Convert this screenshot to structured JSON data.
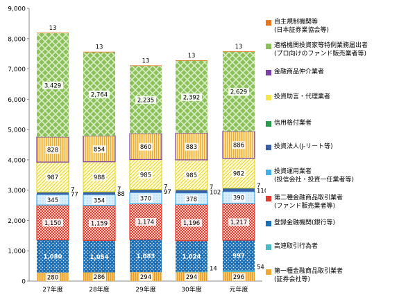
{
  "chart_data": {
    "type": "bar",
    "stacked": true,
    "categories": [
      "27年度",
      "28年度",
      "29年度",
      "30年度",
      "元年度"
    ],
    "ylim": [
      0,
      9000
    ],
    "yticks": [
      "0",
      "1,000",
      "2,000",
      "3,000",
      "4,000",
      "5,000",
      "6,000",
      "7,000",
      "8,000",
      "9,000"
    ],
    "yticks_values": [
      0,
      1000,
      2000,
      3000,
      4000,
      5000,
      6000,
      7000,
      8000,
      9000
    ],
    "legend_position": "right",
    "series": [
      {
        "name": "第一種金融商品取引業者\n(証券会社等)",
        "values": [
          280,
          286,
          294,
          294,
          296
        ],
        "labels": [
          "280",
          "286",
          "294",
          "294",
          "296"
        ],
        "color": "#f0a830",
        "pattern": "vstripe",
        "label_color": "#000000"
      },
      {
        "name": "高速取引行為者",
        "values": [
          0,
          0,
          0,
          14,
          54
        ],
        "labels": [
          "",
          "",
          "",
          "14",
          "54"
        ],
        "color": "#4fb8c8",
        "pattern": "solid",
        "label_color": "#000000",
        "label_outside": true
      },
      {
        "name": "登録金融機関(銀行等)",
        "values": [
          1080,
          1054,
          1083,
          1024,
          997
        ],
        "labels": [
          "1,080",
          "1,054",
          "1,083",
          "1,024",
          "997"
        ],
        "color": "#1c6fb5",
        "pattern": "dots",
        "label_color": "#ffffff"
      },
      {
        "name": "第二種金融商品取引業者\n(ファンド販売業者等)",
        "values": [
          1150,
          1159,
          1174,
          1196,
          1217
        ],
        "labels": [
          "1,150",
          "1,159",
          "1,174",
          "1,196",
          "1,217"
        ],
        "color": "#e03a2c",
        "pattern": "cross",
        "label_color": "#000000"
      },
      {
        "name": "投資運用業者\n(投信会社・投資一任業者等)",
        "values": [
          345,
          354,
          370,
          378,
          390
        ],
        "labels": [
          "345",
          "354",
          "370",
          "378",
          "390"
        ],
        "color": "#3fb0e8",
        "pattern": "solid-light",
        "label_color": "#000000"
      },
      {
        "name": "投資法人(J-リート等)",
        "values": [
          77,
          88,
          97,
          102,
          110
        ],
        "labels": [
          "77",
          "88",
          "97",
          "102",
          "110"
        ],
        "color": "#3a5ea8",
        "pattern": "solid",
        "label_color": "#000000",
        "label_outside": true
      },
      {
        "name": "信用格付業者",
        "values": [
          7,
          7,
          7,
          7,
          7
        ],
        "labels": [
          "7",
          "7",
          "7",
          "7",
          "7"
        ],
        "color": "#2a9a4a",
        "pattern": "solid",
        "label_color": "#000000",
        "label_outside": true
      },
      {
        "name": "投資助言・代理業者",
        "values": [
          987,
          988,
          985,
          985,
          982
        ],
        "labels": [
          "987",
          "988",
          "985",
          "985",
          "982"
        ],
        "color": "#f5e64a",
        "pattern": "diag",
        "label_color": "#000000"
      },
      {
        "name": "金融商品仲介業者",
        "values": [
          828,
          854,
          860,
          883,
          886
        ],
        "labels": [
          "828",
          "854",
          "860",
          "883",
          "886"
        ],
        "color": "#7a3ea8",
        "pattern": "vstripe-orange",
        "label_color": "#000000"
      },
      {
        "name": "適格機関投資家等特例業務届出者\n(プロ向けのファンド販売業者等)",
        "values": [
          3429,
          2764,
          2235,
          2392,
          2629
        ],
        "labels": [
          "3,429",
          "2,764",
          "2,235",
          "2,392",
          "2,629"
        ],
        "color": "#8cc05a",
        "pattern": "lattice",
        "label_color": "#000000"
      },
      {
        "name": "自主規制機関等\n(日本証券業協会等)",
        "values": [
          13,
          13,
          13,
          13,
          13
        ],
        "labels": [
          "13",
          "13",
          "13",
          "13",
          "13"
        ],
        "color": "#e8761e",
        "pattern": "solid",
        "label_color": "#000000",
        "label_above": true
      }
    ]
  },
  "legend_order": [
    10,
    9,
    8,
    7,
    6,
    5,
    4,
    3,
    2,
    1,
    0
  ]
}
